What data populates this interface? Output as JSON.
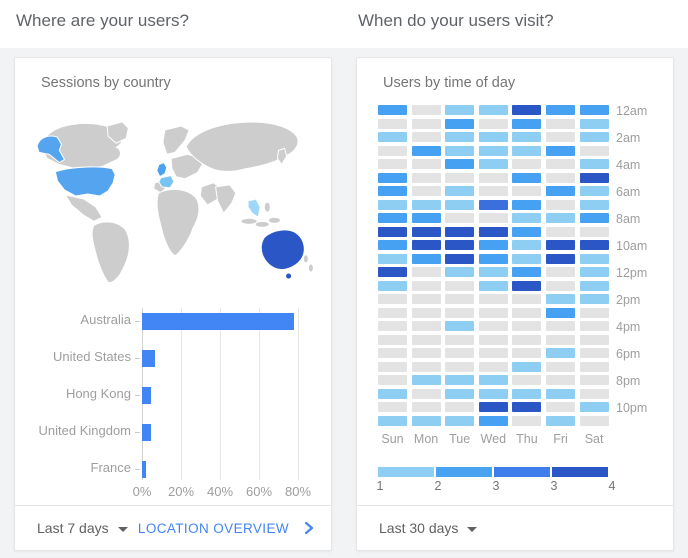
{
  "page": {
    "left_heading": "Where are your users?",
    "right_heading": "When do your users visit?"
  },
  "sessions_card": {
    "title": "Sessions by country",
    "footer": {
      "range_label": "Last 7 days",
      "link_label": "LOCATION OVERVIEW"
    }
  },
  "visits_card": {
    "title": "Users by time of day",
    "footer": {
      "range_label": "Last 30 days"
    }
  },
  "map": {
    "base_color": "#cdcdcd",
    "border_color": "#ffffff",
    "highlights": {
      "united_states": "#55a4f0",
      "united_kingdom": "#4aa2f0",
      "france": "#79c3f2",
      "hong_kong": "#9ed7f7",
      "australia": "#2a56c6"
    }
  },
  "chart_data": [
    {
      "type": "bar",
      "orientation": "horizontal",
      "title": "Sessions by country",
      "categories": [
        "Australia",
        "United States",
        "Hong Kong",
        "United Kingdom",
        "France"
      ],
      "values": [
        78,
        6.5,
        4.5,
        4.5,
        2
      ],
      "unit": "%",
      "xlim": [
        0,
        80
      ],
      "x_ticks": [
        "0%",
        "20%",
        "40%",
        "60%",
        "80%"
      ],
      "bar_color": "#4285f4",
      "grid": true
    },
    {
      "type": "heatmap",
      "title": "Users by time of day",
      "columns": [
        "Sun",
        "Mon",
        "Tue",
        "Wed",
        "Thu",
        "Fri",
        "Sat"
      ],
      "row_labels": [
        "12am",
        "2am",
        "4am",
        "6am",
        "8am",
        "10am",
        "12pm",
        "2pm",
        "4pm",
        "6pm",
        "8pm",
        "10pm"
      ],
      "level_colors": {
        "0": "#e3e3e3",
        "1": "#8dcef2",
        "2": "#46a1f2",
        "3": "#3b6fdc",
        "4": "#2a56c6"
      },
      "rows": [
        [
          2,
          0,
          1,
          1,
          4,
          2,
          2
        ],
        [
          0,
          0,
          2,
          0,
          2,
          0,
          1
        ],
        [
          1,
          0,
          1,
          1,
          1,
          0,
          1
        ],
        [
          0,
          2,
          1,
          1,
          1,
          2,
          0
        ],
        [
          0,
          0,
          2,
          1,
          0,
          0,
          1
        ],
        [
          2,
          0,
          0,
          0,
          2,
          0,
          4
        ],
        [
          2,
          0,
          1,
          0,
          0,
          2,
          1
        ],
        [
          1,
          1,
          1,
          3,
          2,
          0,
          1
        ],
        [
          2,
          2,
          0,
          0,
          1,
          1,
          2
        ],
        [
          4,
          4,
          4,
          4,
          2,
          0,
          0
        ],
        [
          2,
          4,
          4,
          2,
          1,
          4,
          4
        ],
        [
          1,
          2,
          4,
          2,
          1,
          4,
          1
        ],
        [
          4,
          0,
          1,
          1,
          2,
          0,
          1
        ],
        [
          1,
          0,
          0,
          1,
          4,
          0,
          1
        ],
        [
          0,
          0,
          0,
          0,
          0,
          1,
          1
        ],
        [
          0,
          0,
          0,
          0,
          0,
          2,
          0
        ],
        [
          0,
          0,
          1,
          0,
          0,
          0,
          0
        ],
        [
          0,
          0,
          0,
          0,
          0,
          0,
          0
        ],
        [
          0,
          0,
          0,
          0,
          0,
          1,
          0
        ],
        [
          0,
          0,
          0,
          0,
          1,
          0,
          0
        ],
        [
          0,
          1,
          1,
          1,
          0,
          0,
          0
        ],
        [
          1,
          0,
          1,
          1,
          1,
          1,
          0
        ],
        [
          0,
          0,
          0,
          4,
          4,
          0,
          1
        ],
        [
          1,
          1,
          1,
          2,
          0,
          1,
          0
        ]
      ],
      "legend": {
        "colors": [
          "#8dcef2",
          "#48a3f1",
          "#3d7ee9",
          "#2a56c6"
        ],
        "labels": [
          "1",
          "2",
          "3",
          "3",
          "4"
        ],
        "position": "bottom"
      }
    }
  ]
}
